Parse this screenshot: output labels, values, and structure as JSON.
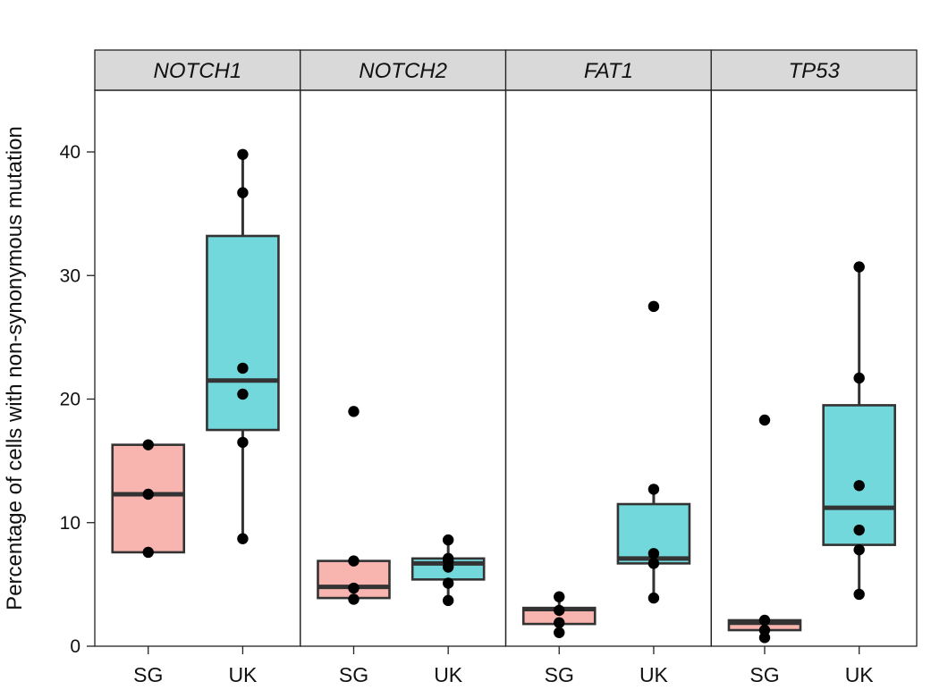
{
  "chart_data": {
    "type": "box",
    "ylabel": "Percentage of  cells with non-synonymous mutation",
    "ylim": [
      0,
      45
    ],
    "yticks": [
      0,
      10,
      20,
      30,
      40
    ],
    "categories": [
      "SG",
      "UK"
    ],
    "colors": {
      "SG": "#f8b4ae",
      "UK": "#72d8dc"
    },
    "facets": [
      {
        "title": "NOTCH1",
        "groups": [
          {
            "name": "SG",
            "q1": 7.6,
            "median": 12.3,
            "q3": 16.3,
            "whisker_low": 7.6,
            "whisker_high": 16.3,
            "points": [
              16.3,
              12.3,
              7.6
            ]
          },
          {
            "name": "UK",
            "q1": 17.5,
            "median": 21.5,
            "q3": 33.2,
            "whisker_low": 8.7,
            "whisker_high": 39.8,
            "points": [
              39.8,
              36.7,
              22.5,
              20.4,
              16.5,
              8.7
            ]
          }
        ]
      },
      {
        "title": "NOTCH2",
        "groups": [
          {
            "name": "SG",
            "q1": 3.9,
            "median": 4.8,
            "q3": 6.9,
            "whisker_low": 3.9,
            "whisker_high": 6.9,
            "points": [
              19.0,
              6.9,
              4.7,
              3.8
            ]
          },
          {
            "name": "UK",
            "q1": 5.4,
            "median": 6.7,
            "q3": 7.1,
            "whisker_low": 3.7,
            "whisker_high": 8.6,
            "points": [
              8.6,
              7.1,
              6.9,
              6.4,
              5.1,
              3.7
            ]
          }
        ]
      },
      {
        "title": "FAT1",
        "groups": [
          {
            "name": "SG",
            "q1": 1.8,
            "median": 3.0,
            "q3": 3.1,
            "whisker_low": 1.1,
            "whisker_high": 4.0,
            "points": [
              4.0,
              2.9,
              1.9,
              1.1
            ]
          },
          {
            "name": "UK",
            "q1": 6.7,
            "median": 7.1,
            "q3": 11.5,
            "whisker_low": 3.9,
            "whisker_high": 12.7,
            "points": [
              27.5,
              12.7,
              7.5,
              6.7,
              3.9
            ]
          }
        ]
      },
      {
        "title": "TP53",
        "groups": [
          {
            "name": "SG",
            "q1": 1.3,
            "median": 1.9,
            "q3": 2.1,
            "whisker_low": 0.7,
            "whisker_high": 2.1,
            "points": [
              18.3,
              2.1,
              1.3,
              0.7
            ]
          },
          {
            "name": "UK",
            "q1": 8.2,
            "median": 11.2,
            "q3": 19.5,
            "whisker_low": 4.2,
            "whisker_high": 30.7,
            "points": [
              30.7,
              21.7,
              13.0,
              9.4,
              7.8,
              4.2
            ]
          }
        ]
      }
    ]
  }
}
